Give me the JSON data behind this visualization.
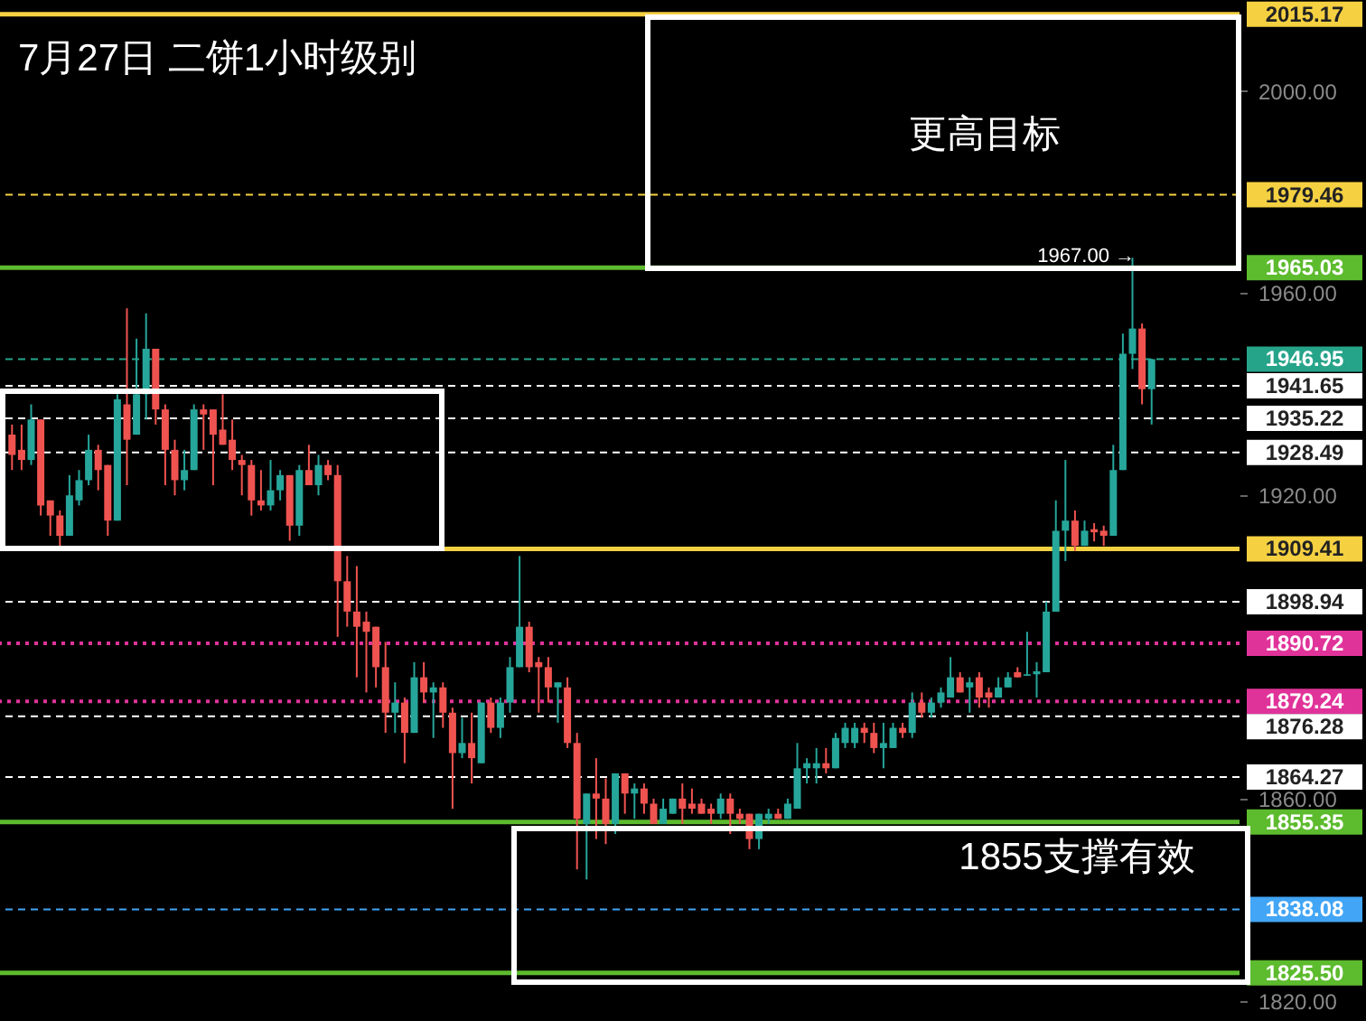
{
  "chart_data": {
    "type": "candlestick",
    "title": "7月27日 二饼1小时级别",
    "categories": [
      null,
      null,
      null,
      null,
      null,
      null,
      null,
      null,
      null,
      null,
      null,
      null,
      null,
      null,
      null,
      null,
      null,
      null,
      null,
      null,
      null,
      null,
      null,
      null,
      null,
      null,
      null,
      null,
      null,
      null,
      null,
      null,
      null,
      null,
      null,
      null,
      null,
      null,
      null,
      null,
      null,
      null,
      null,
      null,
      null,
      null,
      null,
      null,
      null,
      null,
      null,
      null,
      null,
      null,
      null,
      null,
      null,
      null,
      null,
      null,
      null,
      null,
      null,
      null,
      null,
      null,
      null,
      null,
      null,
      null,
      null,
      null,
      null,
      null,
      null,
      null,
      null,
      null,
      null,
      null,
      null,
      null,
      null,
      null,
      null,
      null,
      null,
      null,
      null,
      null,
      null,
      null,
      null,
      null,
      null,
      null,
      null,
      null,
      null,
      null,
      null,
      null,
      null,
      null,
      null,
      null,
      null,
      null,
      null,
      null,
      null,
      null,
      null,
      null,
      null,
      null,
      null,
      null,
      null,
      null
    ],
    "ohlc": [
      [
        1932,
        1934,
        1925,
        1928
      ],
      [
        1929,
        1934,
        1925,
        1927
      ],
      [
        1927,
        1938,
        1926,
        1935
      ],
      [
        1935,
        1935,
        1916,
        1918
      ],
      [
        1919,
        1919,
        1912,
        1916
      ],
      [
        1916,
        1917,
        1910,
        1912
      ],
      [
        1912,
        1924,
        1912,
        1920
      ],
      [
        1919,
        1925,
        1918,
        1923
      ],
      [
        1923,
        1932,
        1922,
        1929
      ],
      [
        1929,
        1930,
        1921,
        1925
      ],
      [
        1926,
        1926,
        1912,
        1915
      ],
      [
        1915,
        1940,
        1915,
        1939
      ],
      [
        1938,
        1957,
        1922,
        1931
      ],
      [
        1932,
        1951,
        1932,
        1940
      ],
      [
        1940,
        1956,
        1935,
        1949
      ],
      [
        1949,
        1949,
        1934,
        1937
      ],
      [
        1937,
        1938,
        1922,
        1929
      ],
      [
        1929,
        1931,
        1920,
        1923
      ],
      [
        1923,
        1929,
        1921,
        1925
      ],
      [
        1925,
        1938,
        1925,
        1937
      ],
      [
        1937,
        1938,
        1929,
        1936
      ],
      [
        1937,
        1937,
        1922,
        1932
      ],
      [
        1933,
        1940,
        1930,
        1930
      ],
      [
        1931,
        1935,
        1925,
        1927
      ],
      [
        1927,
        1928,
        1920,
        1926
      ],
      [
        1926,
        1927,
        1916,
        1919
      ],
      [
        1919,
        1925,
        1917,
        1918
      ],
      [
        1918,
        1927,
        1917,
        1921
      ],
      [
        1921,
        1925,
        1919,
        1924
      ],
      [
        1924,
        1924,
        1911,
        1914
      ],
      [
        1914,
        1926,
        1912,
        1925
      ],
      [
        1925,
        1930,
        1922,
        1922
      ],
      [
        1922,
        1928,
        1920,
        1926
      ],
      [
        1926,
        1927,
        1923,
        1924
      ],
      [
        1924,
        1926,
        1892,
        1903
      ],
      [
        1903,
        1908,
        1894,
        1897
      ],
      [
        1897,
        1906,
        1884,
        1894
      ],
      [
        1895,
        1897,
        1881,
        1893
      ],
      [
        1894,
        1894,
        1882,
        1886
      ],
      [
        1886,
        1891,
        1873,
        1877
      ],
      [
        1877,
        1883,
        1873,
        1879
      ],
      [
        1879,
        1880,
        1867,
        1873
      ],
      [
        1873,
        1887,
        1873,
        1884
      ],
      [
        1884,
        1887,
        1879,
        1881
      ],
      [
        1881,
        1883,
        1872,
        1882
      ],
      [
        1882,
        1883,
        1874,
        1877
      ],
      [
        1877,
        1878,
        1858,
        1869
      ],
      [
        1869,
        1876,
        1868,
        1871
      ],
      [
        1871,
        1877,
        1863,
        1868
      ],
      [
        1867,
        1879,
        1867,
        1879
      ],
      [
        1879,
        1880,
        1873,
        1874
      ],
      [
        1874,
        1880,
        1872,
        1879
      ],
      [
        1879,
        1888,
        1877,
        1886
      ],
      [
        1886,
        1908,
        1886,
        1894
      ],
      [
        1894,
        1895,
        1885,
        1886
      ],
      [
        1887,
        1888,
        1877,
        1886
      ],
      [
        1886,
        1888,
        1879,
        1882
      ],
      [
        1882,
        1883,
        1875,
        1883
      ],
      [
        1882,
        1884,
        1870,
        1871
      ],
      [
        1871,
        1873,
        1846,
        1856
      ],
      [
        1855,
        1861,
        1844,
        1861
      ],
      [
        1861,
        1868,
        1852,
        1860
      ],
      [
        1860,
        1864,
        1851,
        1855
      ],
      [
        1855,
        1865,
        1853,
        1865
      ],
      [
        1865,
        1865,
        1857,
        1861
      ],
      [
        1861,
        1863,
        1856,
        1862
      ],
      [
        1862,
        1863,
        1857,
        1859
      ],
      [
        1859,
        1860,
        1855,
        1855
      ],
      [
        1855,
        1860,
        1855,
        1858
      ],
      [
        1857,
        1860,
        1857,
        1860
      ],
      [
        1860,
        1863,
        1855,
        1858
      ],
      [
        1859,
        1862,
        1857,
        1858
      ],
      [
        1859,
        1860,
        1857,
        1857
      ],
      [
        1858,
        1859,
        1855,
        1857
      ],
      [
        1857,
        1861,
        1856,
        1860
      ],
      [
        1860,
        1861,
        1853,
        1857
      ],
      [
        1857,
        1858,
        1855,
        1856
      ],
      [
        1857,
        1857,
        1850,
        1852
      ],
      [
        1852,
        1857,
        1850,
        1857
      ],
      [
        1856,
        1858,
        1855,
        1857
      ],
      [
        1857,
        1858,
        1856,
        1856
      ],
      [
        1856,
        1860,
        1856,
        1859
      ],
      [
        1858,
        1871,
        1858,
        1866
      ],
      [
        1866,
        1868,
        1863,
        1867
      ],
      [
        1866,
        1870,
        1863,
        1867
      ],
      [
        1867,
        1870,
        1865,
        1866
      ],
      [
        1866,
        1873,
        1866,
        1872
      ],
      [
        1871,
        1875,
        1870,
        1874
      ],
      [
        1871,
        1875,
        1870,
        1874
      ],
      [
        1874,
        1875,
        1871,
        1873
      ],
      [
        1873,
        1875,
        1869,
        1870
      ],
      [
        1870,
        1875,
        1866,
        1871
      ],
      [
        1870,
        1875,
        1870,
        1874
      ],
      [
        1874,
        1875,
        1872,
        1873
      ],
      [
        1873,
        1881,
        1872,
        1879
      ],
      [
        1879,
        1881,
        1876,
        1877
      ],
      [
        1877,
        1880,
        1876,
        1879
      ],
      [
        1879,
        1882,
        1878,
        1881
      ],
      [
        1880,
        1888,
        1880,
        1884
      ],
      [
        1884,
        1885,
        1881,
        1881
      ],
      [
        1882,
        1884,
        1877,
        1883
      ],
      [
        1884,
        1885,
        1878,
        1880
      ],
      [
        1881,
        1882,
        1878,
        1880
      ],
      [
        1880,
        1884,
        1880,
        1882
      ],
      [
        1882,
        1885,
        1882,
        1884
      ],
      [
        1885,
        1886,
        1884,
        1884
      ],
      [
        1884.3,
        1893,
        1884.3,
        1884.6
      ],
      [
        1884.6,
        1887,
        1880,
        1885.2
      ],
      [
        1885,
        1899,
        1885,
        1897
      ],
      [
        1897,
        1919,
        1897,
        1913
      ],
      [
        1913,
        1927,
        1907,
        1915
      ],
      [
        1915,
        1917,
        1909,
        1910
      ],
      [
        1910,
        1915,
        1910,
        1913
      ],
      [
        1913.3,
        1914.5,
        1910.9,
        1912.7
      ],
      [
        1913,
        1914,
        1910,
        1912
      ],
      [
        1912,
        1930,
        1912,
        1925
      ],
      [
        1925,
        1952,
        1925,
        1948
      ],
      [
        1948,
        1967,
        1945,
        1953
      ],
      [
        1953,
        1954,
        1938,
        1941
      ],
      [
        1941,
        1947,
        1934,
        1946.95
      ]
    ],
    "ylim": [
      1816,
      2018
    ],
    "yticks": [
      {
        "value": 1820,
        "label": "1820.00"
      },
      {
        "value": 1860,
        "label": "1860.00"
      },
      {
        "value": 1920,
        "label": "1920.00"
      },
      {
        "value": 1960,
        "label": "1960.00"
      },
      {
        "value": 2000,
        "label": "2000.00"
      }
    ],
    "ref_lines": [
      {
        "axis": "y",
        "value": 2015.17,
        "label": "2015.17",
        "color": "#f5d142",
        "line_style": "solid"
      },
      {
        "axis": "y",
        "value": 1979.46,
        "label": "1979.46",
        "color": "#f5d142",
        "line_style": "dashed"
      },
      {
        "axis": "y",
        "value": 1965.03,
        "label": "1965.03",
        "color": "#5dbb2e",
        "line_style": "solid"
      },
      {
        "axis": "y",
        "value": 1946.95,
        "label": "1946.95",
        "color": "#26a48a",
        "line_style": "dashed"
      },
      {
        "axis": "y",
        "value": 1941.65,
        "label": "1941.65",
        "color": "#ffffff",
        "line_style": "dashed"
      },
      {
        "axis": "y",
        "value": 1935.22,
        "label": "1935.22",
        "color": "#ffffff",
        "line_style": "dashed"
      },
      {
        "axis": "y",
        "value": 1928.49,
        "label": "1928.49",
        "color": "#ffffff",
        "line_style": "dashed"
      },
      {
        "axis": "y",
        "value": 1909.41,
        "label": "1909.41",
        "color": "#f5d142",
        "line_style": "solid"
      },
      {
        "axis": "y",
        "value": 1898.94,
        "label": "1898.94",
        "color": "#ffffff",
        "line_style": "dashed"
      },
      {
        "axis": "y",
        "value": 1890.72,
        "label": "1890.72",
        "color": "#e0339a",
        "line_style": "dotted"
      },
      {
        "axis": "y",
        "value": 1879.24,
        "label": "1879.24",
        "color": "#e0339a",
        "line_style": "dotted"
      },
      {
        "axis": "y",
        "value": 1876.28,
        "label": "1876.28",
        "color": "#ffffff",
        "line_style": "dashed"
      },
      {
        "axis": "y",
        "value": 1864.27,
        "label": "1864.27",
        "color": "#ffffff",
        "line_style": "dashed"
      },
      {
        "axis": "y",
        "value": 1855.35,
        "label": "1855.35",
        "color": "#5dbb2e",
        "line_style": "solid"
      },
      {
        "axis": "y",
        "value": 1838.08,
        "label": "1838.08",
        "color": "#42a5f5",
        "line_style": "dashed"
      },
      {
        "axis": "y",
        "value": 1825.5,
        "label": "1825.50",
        "color": "#5dbb2e",
        "line_style": "solid"
      }
    ],
    "annotations": [
      "1967.00 →",
      "更高目标",
      "1855支撑有效"
    ]
  }
}
